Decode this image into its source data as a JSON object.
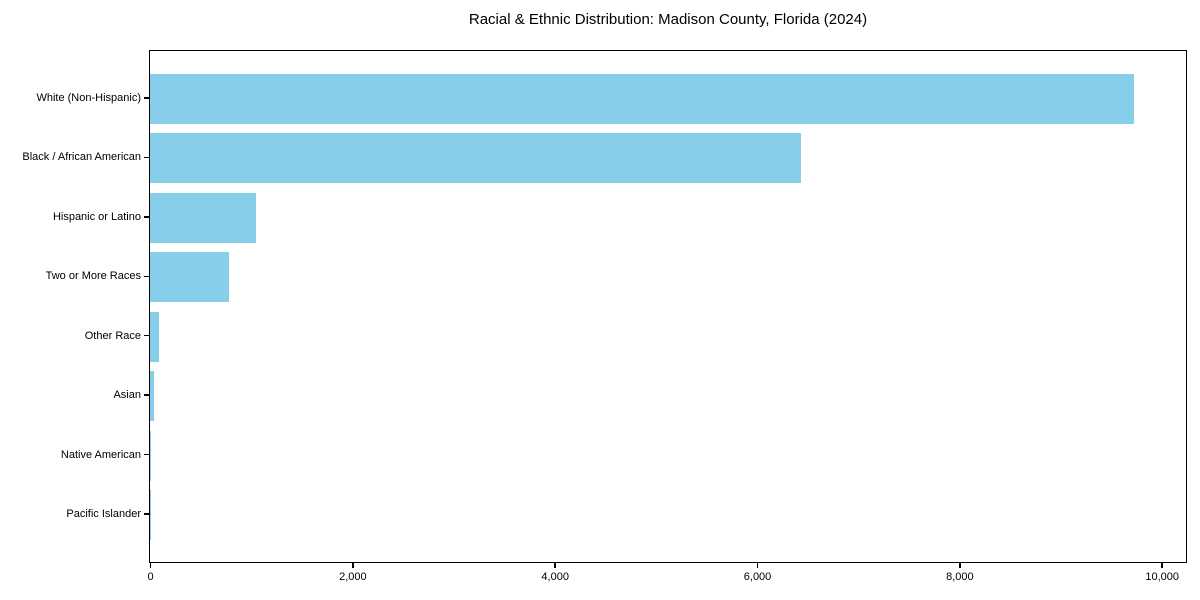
{
  "chart_data": {
    "type": "bar",
    "orientation": "horizontal",
    "title": "Racial & Ethnic Distribution: Madison County, Florida (2024)",
    "categories": [
      "White (Non-Hispanic)",
      "Black / African American",
      "Hispanic or Latino",
      "Two or More Races",
      "Other Race",
      "Asian",
      "Native American",
      "Pacific Islander"
    ],
    "values": [
      9730,
      6435,
      1050,
      785,
      90,
      40,
      8,
      3
    ],
    "xlabel": "",
    "ylabel": "",
    "xlim": [
      0,
      10230
    ],
    "x_ticks": [
      {
        "value": 0,
        "label": "0"
      },
      {
        "value": 2000,
        "label": "2,000"
      },
      {
        "value": 4000,
        "label": "4,000"
      },
      {
        "value": 6000,
        "label": "6,000"
      },
      {
        "value": 8000,
        "label": "8,000"
      },
      {
        "value": 10000,
        "label": "10,000"
      }
    ],
    "bar_color": "#87CEEB",
    "background_color": "#FFFFFF",
    "axis_color": "#000000",
    "grid": false,
    "legend": false
  }
}
